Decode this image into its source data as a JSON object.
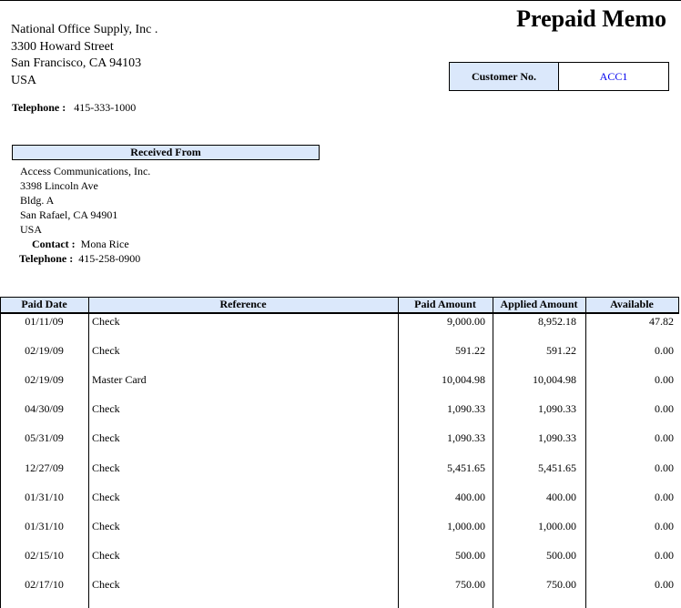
{
  "title": "Prepaid Memo",
  "company": {
    "name": "National Office Supply, Inc .",
    "street": "3300  Howard Street",
    "city": "San Francisco, CA 94103",
    "country": "USA",
    "telephone_label": "Telephone :",
    "telephone": "415-333-1000"
  },
  "customer": {
    "label": "Customer No.",
    "value": "ACC1",
    "value_color": "#0000ee"
  },
  "received_from": {
    "header": "Received From",
    "name": "Access Communications, Inc.",
    "street": "3398  Lincoln Ave",
    "street2": "Bldg. A",
    "city": "San Rafael, CA  94901",
    "country": "USA",
    "contact_label": "Contact :",
    "contact": "Mona Rice",
    "telephone_label": "Telephone :",
    "telephone": "415-258-0900"
  },
  "table": {
    "headers": [
      "Paid Date",
      "Reference",
      "Paid Amount",
      "Applied Amount",
      "Available"
    ],
    "rows": [
      [
        "01/11/09",
        "Check",
        "9,000.00",
        "8,952.18",
        "47.82"
      ],
      [
        "02/19/09",
        "Check",
        "591.22",
        "591.22",
        "0.00"
      ],
      [
        "02/19/09",
        "Master Card",
        "10,004.98",
        "10,004.98",
        "0.00"
      ],
      [
        "04/30/09",
        "Check",
        "1,090.33",
        "1,090.33",
        "0.00"
      ],
      [
        "05/31/09",
        "Check",
        "1,090.33",
        "1,090.33",
        "0.00"
      ],
      [
        "12/27/09",
        "Check",
        "5,451.65",
        "5,451.65",
        "0.00"
      ],
      [
        "01/31/10",
        "Check",
        "400.00",
        "400.00",
        "0.00"
      ],
      [
        "01/31/10",
        "Check",
        "1,000.00",
        "1,000.00",
        "0.00"
      ],
      [
        "02/15/10",
        "Check",
        "500.00",
        "500.00",
        "0.00"
      ],
      [
        "02/17/10",
        "Check",
        "750.00",
        "750.00",
        "0.00"
      ]
    ]
  },
  "header_bg": "#dbe8fb"
}
